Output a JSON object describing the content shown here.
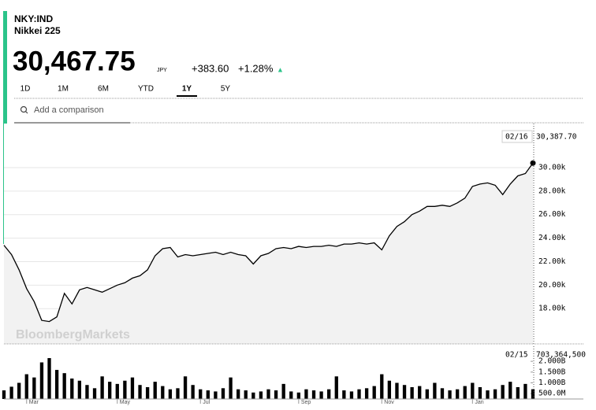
{
  "header": {
    "symbol": "NKY:IND",
    "name": "Nikkei 225",
    "price": "30,467.75",
    "currency": "JPY",
    "change": "+383.60",
    "change_pct": "+1.28%",
    "arrow": "▲",
    "ranges": [
      "1D",
      "1M",
      "6M",
      "YTD",
      "1Y",
      "5Y"
    ],
    "selected_range_index": 4,
    "comparison_placeholder": "Add a comparison",
    "watermark": "BloombergMarkets"
  },
  "chart_data": [
    {
      "type": "line",
      "color": "#000000",
      "fill": "#f2f2f2",
      "grid": true,
      "values": [
        23400,
        22600,
        21300,
        19700,
        18600,
        17000,
        16900,
        17300,
        19300,
        18400,
        19600,
        19800,
        19600,
        19400,
        19700,
        20000,
        20200,
        20600,
        20800,
        21300,
        22500,
        23100,
        23200,
        22400,
        22600,
        22500,
        22600,
        22700,
        22800,
        22600,
        22800,
        22600,
        22500,
        21800,
        22500,
        22700,
        23100,
        23200,
        23100,
        23300,
        23200,
        23300,
        23300,
        23400,
        23300,
        23500,
        23500,
        23600,
        23500,
        23600,
        23000,
        24200,
        25000,
        25400,
        26000,
        26300,
        26700,
        26700,
        26800,
        26700,
        27000,
        27400,
        28400,
        28600,
        28700,
        28500,
        27700,
        28600,
        29300,
        29500,
        30387.7
      ],
      "ylim": [
        15000,
        33750
      ],
      "yticks": [
        {
          "value": 18000,
          "label": "18.00k"
        },
        {
          "value": 20000,
          "label": "20.00k"
        },
        {
          "value": 22000,
          "label": "22.00k"
        },
        {
          "value": 24000,
          "label": "24.00k"
        },
        {
          "value": 26000,
          "label": "26.00k"
        },
        {
          "value": 28000,
          "label": "28.00k"
        },
        {
          "value": 30000,
          "label": "30.00k"
        }
      ],
      "tooltip": {
        "date": "02/16",
        "label": "30,387.70"
      }
    },
    {
      "type": "bar",
      "color": "#000000",
      "values": [
        650000000,
        820000000,
        1000000000,
        1400000000,
        1250000000,
        1950000000,
        2150000000,
        1600000000,
        1450000000,
        1200000000,
        1100000000,
        900000000,
        750000000,
        1300000000,
        1050000000,
        950000000,
        1100000000,
        1250000000,
        900000000,
        800000000,
        1050000000,
        850000000,
        700000000,
        750000000,
        1300000000,
        900000000,
        700000000,
        650000000,
        600000000,
        750000000,
        1250000000,
        700000000,
        650000000,
        550000000,
        600000000,
        700000000,
        650000000,
        950000000,
        600000000,
        550000000,
        700000000,
        650000000,
        600000000,
        700000000,
        1300000000,
        650000000,
        600000000,
        700000000,
        750000000,
        850000000,
        1400000000,
        1100000000,
        1000000000,
        900000000,
        800000000,
        850000000,
        700000000,
        1000000000,
        750000000,
        650000000,
        700000000,
        850000000,
        1000000000,
        800000000,
        650000000,
        700000000,
        900000000,
        1050000000,
        800000000,
        950000000,
        703364500
      ],
      "ylim": [
        250000000,
        2700000000
      ],
      "yticks": [
        {
          "value": 500000000,
          "label": "500.0M"
        },
        {
          "value": 1000000000,
          "label": "1.000B"
        },
        {
          "value": 1500000000,
          "label": "1.500B"
        },
        {
          "value": 2000000000,
          "label": "2.000B"
        }
      ],
      "xticks": [
        {
          "value": 3,
          "label": "Mar"
        },
        {
          "value": 15,
          "label": "May"
        },
        {
          "value": 26,
          "label": "Jul"
        },
        {
          "value": 39,
          "label": "Sep"
        },
        {
          "value": 50,
          "label": "Nov"
        },
        {
          "value": 62,
          "label": "Jan"
        }
      ],
      "tooltip": {
        "date": "02/15",
        "label": "703,364,500"
      }
    }
  ]
}
